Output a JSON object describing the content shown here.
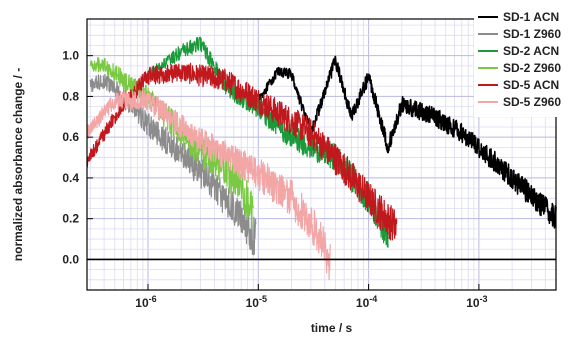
{
  "chart_data": {
    "type": "line",
    "title": "",
    "xlabel": "time / s",
    "ylabel": "normalized absorbance change / -",
    "x_scale": "log",
    "xlim": [
      2.8e-07,
      0.005
    ],
    "ylim": [
      -0.15,
      1.18
    ],
    "grid": true,
    "legend_placement": "right",
    "x_ticks": [
      {
        "value": 1e-06,
        "mant": "10",
        "exp": "-6"
      },
      {
        "value": 1e-05,
        "mant": "10",
        "exp": "-5"
      },
      {
        "value": 0.0001,
        "mant": "10",
        "exp": "-4"
      },
      {
        "value": 0.001,
        "mant": "10",
        "exp": "-3"
      }
    ],
    "y_ticks": [
      {
        "value": 0.0,
        "label": "0.0"
      },
      {
        "value": 0.2,
        "label": "0.2"
      },
      {
        "value": 0.4,
        "label": "0.4"
      },
      {
        "value": 0.6,
        "label": "0.6"
      },
      {
        "value": 0.8,
        "label": "0.8"
      },
      {
        "value": 1.0,
        "label": "1.0"
      }
    ],
    "series": [
      {
        "name": "SD-1 ACN",
        "color": "#000000",
        "noise": 0.06,
        "points": [
          [
            1e-05,
            0.78
          ],
          [
            1.5e-05,
            0.92
          ],
          [
            2e-05,
            0.91
          ],
          [
            3e-05,
            0.62
          ],
          [
            4e-05,
            0.82
          ],
          [
            5e-05,
            0.98
          ],
          [
            7e-05,
            0.7
          ],
          [
            0.0001,
            0.9
          ],
          [
            0.00015,
            0.55
          ],
          [
            0.0002,
            0.76
          ],
          [
            0.0004,
            0.7
          ],
          [
            0.0007,
            0.62
          ],
          [
            0.001,
            0.55
          ],
          [
            0.002,
            0.4
          ],
          [
            0.0035,
            0.28
          ],
          [
            0.005,
            0.2
          ]
        ]
      },
      {
        "name": "SD-1 Z960",
        "color": "#8c8c8c",
        "noise": 0.1,
        "points": [
          [
            3e-07,
            0.85
          ],
          [
            4e-07,
            0.88
          ],
          [
            6e-07,
            0.8
          ],
          [
            1e-06,
            0.66
          ],
          [
            2e-06,
            0.52
          ],
          [
            4e-06,
            0.36
          ],
          [
            7e-06,
            0.2
          ],
          [
            9.5e-06,
            0.1
          ]
        ]
      },
      {
        "name": "SD-2 ACN",
        "color": "#1a9a3a",
        "noise": 0.08,
        "points": [
          [
            1e-06,
            0.9
          ],
          [
            2e-06,
            1.02
          ],
          [
            3e-06,
            1.06
          ],
          [
            5e-06,
            0.85
          ],
          [
            1e-05,
            0.74
          ],
          [
            2e-05,
            0.6
          ],
          [
            5e-05,
            0.5
          ],
          [
            0.0001,
            0.3
          ],
          [
            0.00015,
            0.12
          ]
        ]
      },
      {
        "name": "SD-2 Z960",
        "color": "#7ac943",
        "noise": 0.1,
        "points": [
          [
            3e-07,
            0.95
          ],
          [
            4e-07,
            0.96
          ],
          [
            6e-07,
            0.88
          ],
          [
            1e-06,
            0.8
          ],
          [
            2e-06,
            0.62
          ],
          [
            4e-06,
            0.48
          ],
          [
            7e-06,
            0.36
          ],
          [
            9e-06,
            0.22
          ]
        ]
      },
      {
        "name": "SD-5 ACN",
        "color": "#c0181d",
        "noise": 0.09,
        "points": [
          [
            2.8e-07,
            0.48
          ],
          [
            5e-07,
            0.7
          ],
          [
            1e-06,
            0.9
          ],
          [
            2e-06,
            0.92
          ],
          [
            5e-06,
            0.88
          ],
          [
            1e-05,
            0.78
          ],
          [
            3e-05,
            0.62
          ],
          [
            6e-05,
            0.45
          ],
          [
            0.0001,
            0.3
          ],
          [
            0.00018,
            0.15
          ]
        ]
      },
      {
        "name": "SD-5 Z960",
        "color": "#f2a6a6",
        "noise": 0.1,
        "points": [
          [
            2.8e-07,
            0.62
          ],
          [
            5e-07,
            0.78
          ],
          [
            1e-06,
            0.78
          ],
          [
            3e-06,
            0.58
          ],
          [
            1e-05,
            0.42
          ],
          [
            2e-05,
            0.3
          ],
          [
            3.5e-05,
            0.12
          ],
          [
            4.5e-05,
            -0.02
          ]
        ]
      }
    ]
  }
}
